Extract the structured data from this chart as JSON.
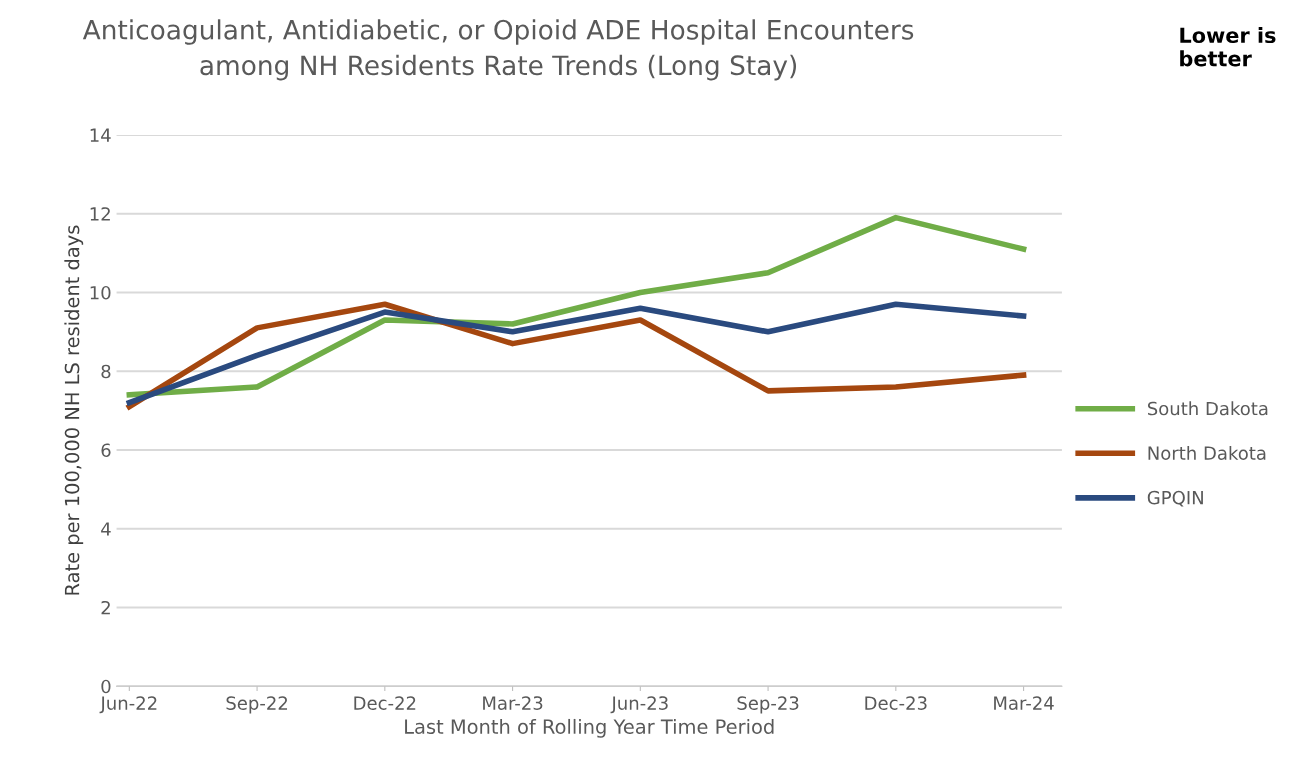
{
  "chart_data": {
    "type": "line",
    "title": "Anticoagulant, Antidiabetic, or Opioid ADE Hospital Encounters\namong NH Residents Rate Trends (Long Stay)",
    "xlabel": "Last Month of Rolling Year Time Period",
    "ylabel": "Rate per 100,000 NH LS resident days",
    "annotations": [
      "Lower is\nbetter"
    ],
    "categories": [
      "Jun-22",
      "Sep-22",
      "Dec-22",
      "Mar-23",
      "Jun-23",
      "Sep-23",
      "Dec-23",
      "Mar-24"
    ],
    "series": [
      {
        "name": "South Dakota",
        "color": "#70ad47",
        "values": [
          7.4,
          7.6,
          9.3,
          9.2,
          10.0,
          10.5,
          11.9,
          11.1
        ]
      },
      {
        "name": "North Dakota",
        "color": "#a5470f",
        "values": [
          7.1,
          9.1,
          9.7,
          8.7,
          9.3,
          7.5,
          7.6,
          7.9
        ]
      },
      {
        "name": "GPQIN",
        "color": "#2a4a7f",
        "values": [
          7.2,
          8.4,
          9.5,
          9.0,
          9.6,
          9.0,
          9.7,
          9.4
        ]
      }
    ],
    "ylim": [
      0,
      14
    ],
    "yticks": [
      0,
      2,
      4,
      6,
      8,
      10,
      12,
      14
    ],
    "grid": "y",
    "legend": "right",
    "marker": "none",
    "line_style": "solid"
  }
}
